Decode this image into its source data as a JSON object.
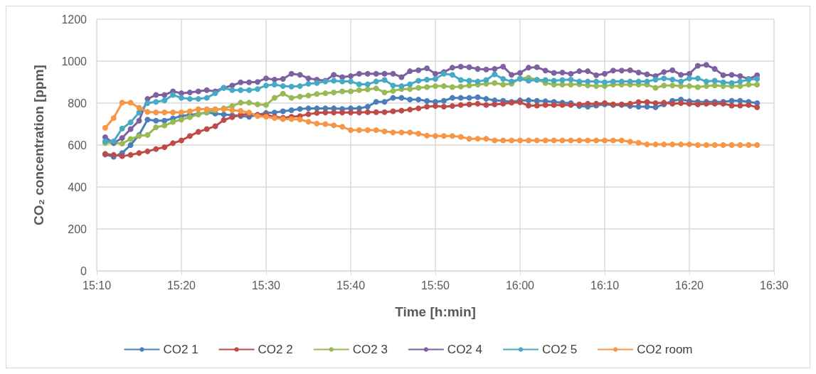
{
  "chart_data": {
    "type": "line",
    "xlabel": "Time [h:min]",
    "ylabel": "CO₂ concentration [ppm]",
    "legend": "bottom",
    "grid": true,
    "marker": "circle",
    "line_style": "solid",
    "xlim": [
      15.1667,
      16.5
    ],
    "xticks": [
      {
        "value": 15.1667,
        "label": "15:10"
      },
      {
        "value": 15.3333,
        "label": "15:20"
      },
      {
        "value": 15.5,
        "label": "15:30"
      },
      {
        "value": 15.6667,
        "label": "15:40"
      },
      {
        "value": 15.8333,
        "label": "15:50"
      },
      {
        "value": 16,
        "label": "16:00"
      },
      {
        "value": 16.1667,
        "label": "16:10"
      },
      {
        "value": 16.3333,
        "label": "16:20"
      },
      {
        "value": 16.5,
        "label": "16:30"
      }
    ],
    "ylim": [
      0,
      1200
    ],
    "yticks": [
      0,
      200,
      400,
      600,
      800,
      1000,
      1200
    ],
    "x": [
      15.1833,
      15.2,
      15.2167,
      15.2333,
      15.25,
      15.2667,
      15.2833,
      15.3,
      15.3167,
      15.3333,
      15.35,
      15.3667,
      15.3833,
      15.4,
      15.4167,
      15.4333,
      15.45,
      15.4667,
      15.4833,
      15.5,
      15.5167,
      15.5333,
      15.55,
      15.5667,
      15.5833,
      15.6,
      15.6167,
      15.6333,
      15.65,
      15.6667,
      15.6833,
      15.7,
      15.7167,
      15.7333,
      15.75,
      15.7667,
      15.7833,
      15.8,
      15.8167,
      15.8333,
      15.85,
      15.8667,
      15.8833,
      15.9,
      15.9167,
      15.9333,
      15.95,
      15.9667,
      15.9833,
      16,
      16.0167,
      16.0333,
      16.05,
      16.0667,
      16.0833,
      16.1,
      16.1167,
      16.1333,
      16.15,
      16.1667,
      16.1833,
      16.2,
      16.2167,
      16.2333,
      16.25,
      16.2667,
      16.2833,
      16.3,
      16.3167,
      16.3333,
      16.35,
      16.3667,
      16.3833,
      16.4,
      16.4167,
      16.4333,
      16.45,
      16.4667
    ],
    "series": [
      {
        "name": "CO2 1",
        "color": "#4a7ebb",
        "values": [
          555,
          544,
          562,
          600,
          648,
          721,
          716,
          716,
          727,
          738,
          744,
          748,
          755,
          750,
          746,
          742,
          738,
          735,
          744,
          753,
          755,
          761,
          766,
          772,
          775,
          775,
          775,
          775,
          772,
          775,
          775,
          783,
          806,
          806,
          825,
          825,
          817,
          817,
          810,
          806,
          811,
          825,
          825,
          825,
          828,
          820,
          813,
          811,
          806,
          813,
          813,
          811,
          809,
          806,
          802,
          800,
          786,
          783,
          788,
          794,
          791,
          791,
          786,
          783,
          783,
          780,
          794,
          811,
          817,
          809,
          806,
          806,
          806,
          806,
          811,
          811,
          806,
          800
        ]
      },
      {
        "name": "CO2 2",
        "color": "#be4b48",
        "values": [
          558,
          553,
          547,
          553,
          562,
          570,
          581,
          590,
          609,
          622,
          643,
          663,
          676,
          690,
          719,
          733,
          744,
          748,
          744,
          744,
          735,
          730,
          735,
          738,
          747,
          753,
          755,
          755,
          755,
          755,
          755,
          757,
          757,
          757,
          761,
          764,
          769,
          775,
          783,
          786,
          783,
          786,
          791,
          794,
          797,
          791,
          794,
          797,
          802,
          804,
          788,
          788,
          791,
          791,
          791,
          791,
          794,
          797,
          797,
          800,
          794,
          794,
          797,
          805,
          805,
          800,
          802,
          797,
          800,
          797,
          794,
          797,
          797,
          797,
          788,
          788,
          791,
          780
        ]
      },
      {
        "name": "CO2 3",
        "color": "#98b954",
        "values": [
          609,
          611,
          607,
          629,
          643,
          648,
          685,
          693,
          710,
          721,
          733,
          746,
          757,
          766,
          775,
          786,
          802,
          802,
          794,
          791,
          825,
          845,
          825,
          831,
          836,
          843,
          847,
          851,
          856,
          856,
          862,
          865,
          870,
          851,
          858,
          867,
          867,
          873,
          876,
          881,
          881,
          876,
          879,
          884,
          888,
          892,
          896,
          888,
          892,
          918,
          921,
          912,
          896,
          888,
          888,
          888,
          890,
          884,
          881,
          881,
          888,
          888,
          888,
          888,
          888,
          873,
          884,
          884,
          881,
          881,
          876,
          881,
          884,
          881,
          881,
          881,
          888,
          888
        ]
      },
      {
        "name": "CO2 4",
        "color": "#7d60a0",
        "values": [
          637,
          609,
          634,
          676,
          716,
          820,
          839,
          839,
          856,
          847,
          851,
          856,
          862,
          856,
          873,
          884,
          899,
          899,
          901,
          918,
          912,
          915,
          940,
          935,
          918,
          912,
          907,
          935,
          924,
          929,
          940,
          940,
          940,
          940,
          940,
          924,
          952,
          957,
          966,
          940,
          948,
          969,
          974,
          971,
          963,
          960,
          963,
          974,
          935,
          944,
          969,
          971,
          955,
          944,
          946,
          940,
          952,
          952,
          933,
          940,
          955,
          955,
          957,
          946,
          937,
          929,
          948,
          957,
          935,
          940,
          978,
          982,
          963,
          933,
          935,
          929,
          915,
          933
        ]
      },
      {
        "name": "CO2 5",
        "color": "#46aac5",
        "values": [
          618,
          618,
          679,
          708,
          755,
          800,
          806,
          813,
          839,
          825,
          820,
          820,
          825,
          847,
          873,
          862,
          862,
          862,
          867,
          884,
          888,
          881,
          879,
          881,
          892,
          896,
          903,
          907,
          903,
          903,
          890,
          890,
          903,
          910,
          884,
          881,
          890,
          907,
          912,
          915,
          940,
          935,
          910,
          907,
          903,
          910,
          937,
          915,
          903,
          915,
          907,
          910,
          910,
          907,
          910,
          912,
          903,
          903,
          903,
          899,
          903,
          903,
          903,
          903,
          903,
          912,
          918,
          912,
          903,
          918,
          918,
          903,
          907,
          899,
          896,
          903,
          912,
          915
        ]
      },
      {
        "name": "CO2 room",
        "color": "#f79646",
        "values": [
          682,
          729,
          802,
          802,
          778,
          758,
          756,
          756,
          756,
          756,
          761,
          771,
          771,
          771,
          771,
          766,
          763,
          755,
          738,
          735,
          729,
          724,
          724,
          722,
          711,
          702,
          700,
          694,
          687,
          671,
          671,
          671,
          671,
          665,
          660,
          660,
          660,
          654,
          645,
          643,
          643,
          643,
          639,
          630,
          630,
          630,
          622,
          622,
          622,
          622,
          622,
          622,
          622,
          622,
          622,
          622,
          622,
          622,
          622,
          622,
          622,
          622,
          616,
          611,
          603,
          603,
          603,
          603,
          603,
          603,
          600,
          600,
          600,
          600,
          600,
          600,
          600,
          600
        ]
      }
    ]
  }
}
